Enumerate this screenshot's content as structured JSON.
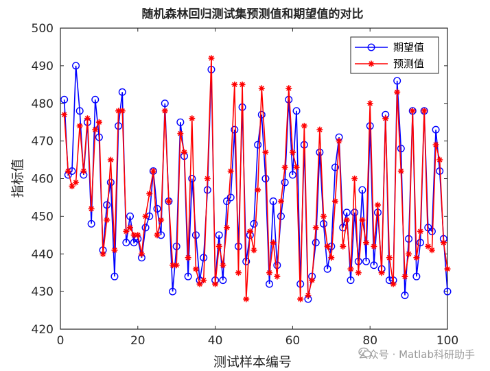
{
  "chart_data": {
    "type": "line",
    "title": "随机森林回归测试集预测值和期望值的对比",
    "xlabel": "测试样本编号",
    "ylabel": "指标值",
    "xlim": [
      0,
      100
    ],
    "ylim": [
      420,
      500
    ],
    "xticks": [
      0,
      20,
      40,
      60,
      80,
      100
    ],
    "yticks": [
      420,
      430,
      440,
      450,
      460,
      470,
      480,
      490,
      500
    ],
    "legend_position": "top-right",
    "grid": false,
    "x": [
      1,
      2,
      3,
      4,
      5,
      6,
      7,
      8,
      9,
      10,
      11,
      12,
      13,
      14,
      15,
      16,
      17,
      18,
      19,
      20,
      21,
      22,
      23,
      24,
      25,
      26,
      27,
      28,
      29,
      30,
      31,
      32,
      33,
      34,
      35,
      36,
      37,
      38,
      39,
      40,
      41,
      42,
      43,
      44,
      45,
      46,
      47,
      48,
      49,
      50,
      51,
      52,
      53,
      54,
      55,
      56,
      57,
      58,
      59,
      60,
      61,
      62,
      63,
      64,
      65,
      66,
      67,
      68,
      69,
      70,
      71,
      72,
      73,
      74,
      75,
      76,
      77,
      78,
      79,
      80,
      81,
      82,
      83,
      84,
      85,
      86,
      87,
      88,
      89,
      90,
      91,
      92,
      93,
      94,
      95,
      96,
      97,
      98,
      99,
      100
    ],
    "series": [
      {
        "name": "期望值",
        "color": "#0000ff",
        "marker": "circle",
        "values": [
          481,
          461,
          462,
          490,
          478,
          461,
          475,
          448,
          481,
          471,
          441,
          453,
          459,
          434,
          474,
          483,
          443,
          450,
          443,
          444,
          439,
          447,
          450,
          462,
          452,
          445,
          480,
          454,
          430,
          442,
          475,
          466,
          434,
          460,
          445,
          433,
          439,
          457,
          489,
          433,
          445,
          433,
          454,
          455,
          473,
          442,
          479,
          438,
          445,
          448,
          469,
          477,
          460,
          432,
          454,
          437,
          450,
          459,
          481,
          461,
          478,
          432,
          469,
          428,
          434,
          443,
          467,
          448,
          436,
          442,
          463,
          471,
          447,
          451,
          433,
          451,
          438,
          457,
          438,
          474,
          437,
          451,
          436,
          477,
          433,
          433,
          486,
          468,
          429,
          444,
          478,
          434,
          443,
          478,
          447,
          446,
          473,
          462,
          444,
          430
        ]
      },
      {
        "name": "预测值",
        "color": "#ff0000",
        "marker": "star",
        "values": [
          477,
          462,
          458,
          459,
          474,
          462,
          476,
          452,
          473,
          475,
          440,
          449,
          465,
          441,
          478,
          478,
          446,
          447,
          445,
          445,
          440,
          450,
          456,
          462,
          445,
          449,
          478,
          454,
          437,
          437,
          472,
          467,
          439,
          476,
          436,
          432,
          433,
          460,
          492,
          432,
          442,
          437,
          447,
          462,
          485,
          435,
          485,
          428,
          446,
          441,
          457,
          484,
          467,
          435,
          443,
          434,
          454,
          463,
          484,
          467,
          463,
          428,
          474,
          429,
          433,
          447,
          473,
          450,
          442,
          439,
          454,
          470,
          442,
          449,
          436,
          460,
          435,
          449,
          443,
          480,
          442,
          453,
          435,
          476,
          439,
          432,
          483,
          462,
          434,
          440,
          478,
          439,
          446,
          478,
          442,
          441,
          469,
          465,
          443,
          436
        ]
      }
    ]
  }
}
